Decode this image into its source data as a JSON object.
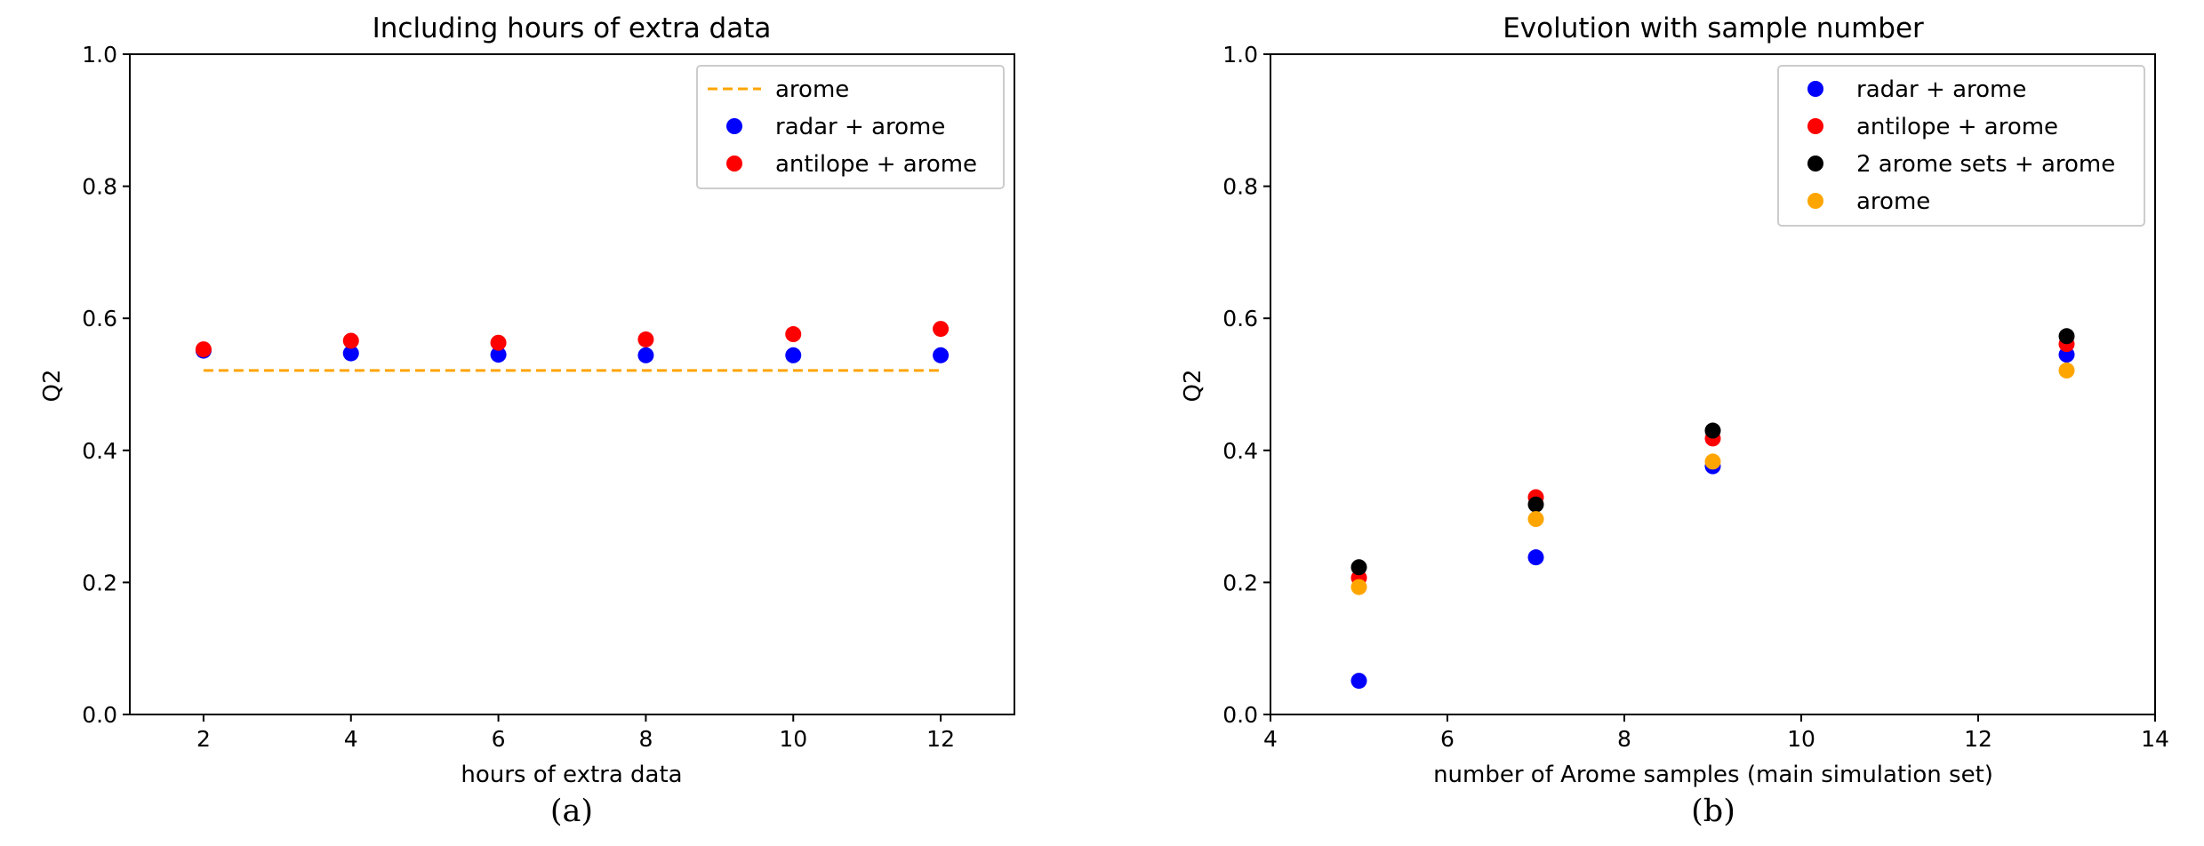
{
  "colors": {
    "radar": "#0000ff",
    "antilope": "#ff0000",
    "two_arome": "#000000",
    "arome": "#ffa500",
    "axis": "#000000",
    "legend_border": "#cccccc"
  },
  "chart_data": [
    {
      "type": "scatter",
      "title": "Including hours of extra data",
      "xlabel": "hours of extra data",
      "ylabel": "Q2",
      "xlim": [
        1,
        13
      ],
      "ylim": [
        0,
        1
      ],
      "xticks": [
        2,
        4,
        6,
        8,
        10,
        12
      ],
      "yticks": [
        0,
        0.2,
        0.4,
        0.6,
        0.8,
        1.0
      ],
      "xticklabels": [
        "2",
        "4",
        "6",
        "8",
        "10",
        "12"
      ],
      "yticklabels": [
        "0.0",
        "0.2",
        "0.4",
        "0.6",
        "0.8",
        "1.0"
      ],
      "legend_position": "top-right",
      "caption": "(a)",
      "series": [
        {
          "name": "arome",
          "kind": "dashed-line",
          "color": "#ffa500",
          "x": [
            2,
            12
          ],
          "y": [
            0.521,
            0.521
          ]
        },
        {
          "name": "radar + arome",
          "kind": "points",
          "color": "#0000ff",
          "x": [
            2,
            4,
            6,
            8,
            10,
            12
          ],
          "y": [
            0.551,
            0.547,
            0.545,
            0.544,
            0.544,
            0.544
          ]
        },
        {
          "name": "antilope + arome",
          "kind": "points",
          "color": "#ff0000",
          "x": [
            2,
            4,
            6,
            8,
            10,
            12
          ],
          "y": [
            0.553,
            0.566,
            0.563,
            0.568,
            0.576,
            0.584
          ]
        }
      ]
    },
    {
      "type": "scatter",
      "title": "Evolution with sample number",
      "xlabel": "number of Arome samples (main simulation set)",
      "ylabel": "Q2",
      "xlim": [
        4,
        14
      ],
      "ylim": [
        0,
        1
      ],
      "xticks": [
        4,
        6,
        8,
        10,
        12,
        14
      ],
      "yticks": [
        0,
        0.2,
        0.4,
        0.6,
        0.8,
        1.0
      ],
      "xticklabels": [
        "4",
        "6",
        "8",
        "10",
        "12",
        "14"
      ],
      "yticklabels": [
        "0.0",
        "0.2",
        "0.4",
        "0.6",
        "0.8",
        "1.0"
      ],
      "legend_position": "top-right",
      "caption": "(b)",
      "series": [
        {
          "name": "radar + arome",
          "kind": "points",
          "color": "#0000ff",
          "x": [
            5,
            7,
            9,
            13
          ],
          "y": [
            0.051,
            0.238,
            0.376,
            0.545
          ]
        },
        {
          "name": "antilope + arome",
          "kind": "points",
          "color": "#ff0000",
          "x": [
            5,
            7,
            9,
            13
          ],
          "y": [
            0.207,
            0.329,
            0.418,
            0.561
          ]
        },
        {
          "name": "2 arome sets + arome",
          "kind": "points",
          "color": "#000000",
          "x": [
            5,
            7,
            9,
            13
          ],
          "y": [
            0.223,
            0.318,
            0.43,
            0.573
          ]
        },
        {
          "name": "arome",
          "kind": "points",
          "color": "#ffa500",
          "x": [
            5,
            7,
            9,
            13
          ],
          "y": [
            0.193,
            0.296,
            0.383,
            0.521
          ]
        }
      ]
    }
  ]
}
